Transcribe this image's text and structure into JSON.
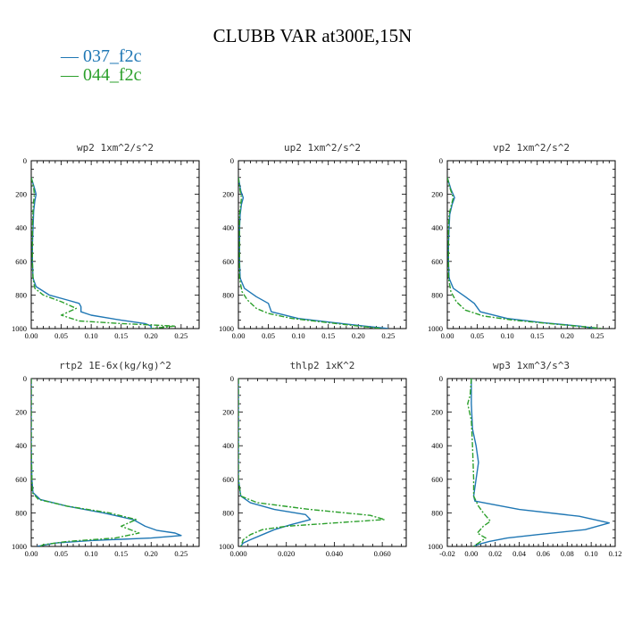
{
  "title": "CLUBB VAR at300E,15N",
  "legend": [
    {
      "label": "— 037_f2c",
      "color": "#1f77b4"
    },
    {
      "label": "— 044_f2c",
      "color": "#2ca02c"
    }
  ],
  "chart_data": [
    {
      "type": "line",
      "title": "wp2  1xm^2/s^2",
      "xlim": [
        0,
        0.28
      ],
      "ylim": [
        1000,
        0
      ],
      "xticks": [
        0,
        0.05,
        0.1,
        0.15,
        0.2,
        0.25
      ],
      "xticklabels": [
        "0.00",
        "0.05",
        "0.10",
        "0.15",
        "0.20",
        "0.25"
      ],
      "yticks": [
        0,
        200,
        400,
        600,
        800,
        1000
      ],
      "series": [
        {
          "color": "#1f77b4",
          "dash": "",
          "points": [
            [
              0.0,
              100
            ],
            [
              0.005,
              160
            ],
            [
              0.008,
              200
            ],
            [
              0.006,
              240
            ],
            [
              0.004,
              300
            ],
            [
              0.003,
              400
            ],
            [
              0.002,
              500
            ],
            [
              0.002,
              600
            ],
            [
              0.003,
              700
            ],
            [
              0.008,
              750
            ],
            [
              0.03,
              800
            ],
            [
              0.06,
              830
            ],
            [
              0.08,
              850
            ],
            [
              0.083,
              870
            ],
            [
              0.083,
              900
            ],
            [
              0.1,
              920
            ],
            [
              0.15,
              950
            ],
            [
              0.19,
              970
            ],
            [
              0.2,
              985
            ],
            [
              0.2,
              1000
            ]
          ]
        },
        {
          "color": "#2ca02c",
          "dash": "6,2,2,2",
          "points": [
            [
              0.0,
              100
            ],
            [
              0.004,
              160
            ],
            [
              0.005,
              200
            ],
            [
              0.004,
              240
            ],
            [
              0.003,
              300
            ],
            [
              0.002,
              400
            ],
            [
              0.002,
              500
            ],
            [
              0.002,
              600
            ],
            [
              0.003,
              700
            ],
            [
              0.006,
              760
            ],
            [
              0.02,
              800
            ],
            [
              0.05,
              840
            ],
            [
              0.075,
              880
            ],
            [
              0.05,
              920
            ],
            [
              0.08,
              955
            ],
            [
              0.15,
              970
            ],
            [
              0.24,
              985
            ],
            [
              0.2,
              1000
            ]
          ]
        }
      ]
    },
    {
      "type": "line",
      "title": "up2  1xm^2/s^2",
      "xlim": [
        0,
        0.28
      ],
      "ylim": [
        1000,
        0
      ],
      "xticks": [
        0,
        0.05,
        0.1,
        0.15,
        0.2,
        0.25
      ],
      "xticklabels": [
        "0.00",
        "0.05",
        "0.10",
        "0.15",
        "0.20",
        "0.25"
      ],
      "yticks": [
        0,
        200,
        400,
        600,
        800,
        1000
      ],
      "series": [
        {
          "color": "#1f77b4",
          "dash": "",
          "points": [
            [
              0.0,
              100
            ],
            [
              0.004,
              180
            ],
            [
              0.008,
              220
            ],
            [
              0.005,
              260
            ],
            [
              0.003,
              320
            ],
            [
              0.002,
              400
            ],
            [
              0.002,
              500
            ],
            [
              0.002,
              600
            ],
            [
              0.003,
              700
            ],
            [
              0.01,
              760
            ],
            [
              0.03,
              810
            ],
            [
              0.05,
              850
            ],
            [
              0.055,
              900
            ],
            [
              0.1,
              940
            ],
            [
              0.16,
              965
            ],
            [
              0.21,
              985
            ],
            [
              0.25,
              1000
            ]
          ]
        },
        {
          "color": "#2ca02c",
          "dash": "6,2,2,2",
          "points": [
            [
              0.0,
              100
            ],
            [
              0.003,
              180
            ],
            [
              0.005,
              220
            ],
            [
              0.004,
              260
            ],
            [
              0.002,
              320
            ],
            [
              0.002,
              400
            ],
            [
              0.002,
              500
            ],
            [
              0.002,
              600
            ],
            [
              0.002,
              700
            ],
            [
              0.006,
              780
            ],
            [
              0.015,
              830
            ],
            [
              0.03,
              880
            ],
            [
              0.05,
              910
            ],
            [
              0.09,
              940
            ],
            [
              0.15,
              965
            ],
            [
              0.2,
              985
            ],
            [
              0.24,
              1000
            ]
          ]
        }
      ]
    },
    {
      "type": "line",
      "title": "vp2  1xm^2/s^2",
      "xlim": [
        0,
        0.28
      ],
      "ylim": [
        1000,
        0
      ],
      "xticks": [
        0,
        0.05,
        0.1,
        0.15,
        0.2,
        0.25
      ],
      "xticklabels": [
        "0.00",
        "0.05",
        "0.10",
        "0.15",
        "0.20",
        "0.25"
      ],
      "yticks": [
        0,
        200,
        400,
        600,
        800,
        1000
      ],
      "series": [
        {
          "color": "#1f77b4",
          "dash": "",
          "points": [
            [
              0.0,
              100
            ],
            [
              0.006,
              170
            ],
            [
              0.012,
              220
            ],
            [
              0.008,
              260
            ],
            [
              0.004,
              320
            ],
            [
              0.003,
              400
            ],
            [
              0.002,
              500
            ],
            [
              0.002,
              600
            ],
            [
              0.003,
              700
            ],
            [
              0.01,
              760
            ],
            [
              0.03,
              810
            ],
            [
              0.045,
              850
            ],
            [
              0.055,
              900
            ],
            [
              0.1,
              940
            ],
            [
              0.16,
              965
            ],
            [
              0.22,
              985
            ],
            [
              0.25,
              1000
            ]
          ]
        },
        {
          "color": "#2ca02c",
          "dash": "6,2,2,2",
          "points": [
            [
              0.0,
              100
            ],
            [
              0.005,
              170
            ],
            [
              0.01,
              220
            ],
            [
              0.007,
              260
            ],
            [
              0.003,
              320
            ],
            [
              0.002,
              400
            ],
            [
              0.002,
              500
            ],
            [
              0.002,
              600
            ],
            [
              0.002,
              700
            ],
            [
              0.006,
              780
            ],
            [
              0.015,
              840
            ],
            [
              0.03,
              890
            ],
            [
              0.06,
              925
            ],
            [
              0.11,
              950
            ],
            [
              0.17,
              970
            ],
            [
              0.23,
              990
            ],
            [
              0.26,
              1000
            ]
          ]
        }
      ]
    },
    {
      "type": "line",
      "title": "rtp2  1E-6x(kg/kg)^2",
      "xlim": [
        0,
        0.28
      ],
      "ylim": [
        1000,
        0
      ],
      "xticks": [
        0,
        0.05,
        0.1,
        0.15,
        0.2,
        0.25
      ],
      "xticklabels": [
        "0.00",
        "0.05",
        "0.10",
        "0.15",
        "0.20",
        "0.25"
      ],
      "yticks": [
        0,
        200,
        400,
        600,
        800,
        1000
      ],
      "series": [
        {
          "color": "#1f77b4",
          "dash": "",
          "points": [
            [
              0.0,
              0
            ],
            [
              0.0,
              400
            ],
            [
              0.001,
              600
            ],
            [
              0.003,
              680
            ],
            [
              0.015,
              720
            ],
            [
              0.06,
              760
            ],
            [
              0.12,
              800
            ],
            [
              0.17,
              840
            ],
            [
              0.19,
              880
            ],
            [
              0.21,
              905
            ],
            [
              0.24,
              920
            ],
            [
              0.25,
              935
            ],
            [
              0.2,
              950
            ],
            [
              0.1,
              965
            ],
            [
              0.04,
              980
            ],
            [
              0.01,
              1000
            ]
          ]
        },
        {
          "color": "#2ca02c",
          "dash": "6,2,2,2",
          "points": [
            [
              0.0,
              0
            ],
            [
              0.0,
              400
            ],
            [
              0.001,
              600
            ],
            [
              0.002,
              680
            ],
            [
              0.012,
              720
            ],
            [
              0.06,
              760
            ],
            [
              0.13,
              800
            ],
            [
              0.175,
              840
            ],
            [
              0.15,
              880
            ],
            [
              0.18,
              920
            ],
            [
              0.14,
              950
            ],
            [
              0.06,
              970
            ],
            [
              0.02,
              990
            ],
            [
              0.015,
              1000
            ]
          ]
        }
      ]
    },
    {
      "type": "line",
      "title": "thlp2  1xK^2",
      "xlim": [
        0,
        0.07
      ],
      "ylim": [
        1000,
        0
      ],
      "xticks": [
        0,
        0.02,
        0.04,
        0.06
      ],
      "xticklabels": [
        "0.000",
        "0.020",
        "0.040",
        "0.060"
      ],
      "yticks": [
        0,
        200,
        400,
        600,
        800,
        1000
      ],
      "series": [
        {
          "color": "#1f77b4",
          "dash": "",
          "points": [
            [
              0.0,
              0
            ],
            [
              0.0,
              400
            ],
            [
              0.0,
              600
            ],
            [
              0.001,
              700
            ],
            [
              0.005,
              740
            ],
            [
              0.015,
              780
            ],
            [
              0.028,
              810
            ],
            [
              0.03,
              840
            ],
            [
              0.022,
              870
            ],
            [
              0.015,
              900
            ],
            [
              0.01,
              930
            ],
            [
              0.005,
              960
            ],
            [
              0.002,
              980
            ],
            [
              0.001,
              1000
            ]
          ]
        },
        {
          "color": "#2ca02c",
          "dash": "6,2,2,2",
          "points": [
            [
              0.0,
              0
            ],
            [
              0.0,
              400
            ],
            [
              0.0,
              600
            ],
            [
              0.001,
              700
            ],
            [
              0.008,
              740
            ],
            [
              0.03,
              780
            ],
            [
              0.055,
              815
            ],
            [
              0.061,
              840
            ],
            [
              0.04,
              860
            ],
            [
              0.02,
              880
            ],
            [
              0.01,
              900
            ],
            [
              0.005,
              930
            ],
            [
              0.002,
              960
            ],
            [
              0.001,
              1000
            ]
          ]
        }
      ]
    },
    {
      "type": "line",
      "title": "wp3  1xm^3/s^3",
      "xlim": [
        -0.02,
        0.12
      ],
      "ylim": [
        1000,
        0
      ],
      "xticks": [
        -0.02,
        0.0,
        0.02,
        0.04,
        0.06,
        0.08,
        0.1,
        0.12
      ],
      "xticklabels": [
        "-0.02",
        "0.00",
        "0.02",
        "0.04",
        "0.06",
        "0.08",
        "0.10",
        "0.12"
      ],
      "yticks": [
        0,
        200,
        400,
        600,
        800,
        1000
      ],
      "series": [
        {
          "color": "#1f77b4",
          "dash": "",
          "points": [
            [
              0.0,
              0
            ],
            [
              0.0,
              150
            ],
            [
              0.001,
              300
            ],
            [
              0.004,
              400
            ],
            [
              0.006,
              500
            ],
            [
              0.004,
              600
            ],
            [
              0.002,
              700
            ],
            [
              0.003,
              730
            ],
            [
              0.04,
              780
            ],
            [
              0.09,
              820
            ],
            [
              0.115,
              860
            ],
            [
              0.095,
              900
            ],
            [
              0.055,
              930
            ],
            [
              0.03,
              950
            ],
            [
              0.015,
              970
            ],
            [
              0.005,
              990
            ],
            [
              0.002,
              1000
            ]
          ]
        },
        {
          "color": "#2ca02c",
          "dash": "6,2,2,2",
          "points": [
            [
              0.0,
              0
            ],
            [
              -0.001,
              100
            ],
            [
              -0.003,
              150
            ],
            [
              0.0,
              250
            ],
            [
              0.001,
              400
            ],
            [
              0.002,
              600
            ],
            [
              0.002,
              700
            ],
            [
              0.006,
              760
            ],
            [
              0.01,
              800
            ],
            [
              0.016,
              850
            ],
            [
              0.01,
              880
            ],
            [
              0.005,
              920
            ],
            [
              0.012,
              950
            ],
            [
              0.006,
              980
            ],
            [
              0.002,
              1000
            ]
          ]
        }
      ]
    }
  ]
}
